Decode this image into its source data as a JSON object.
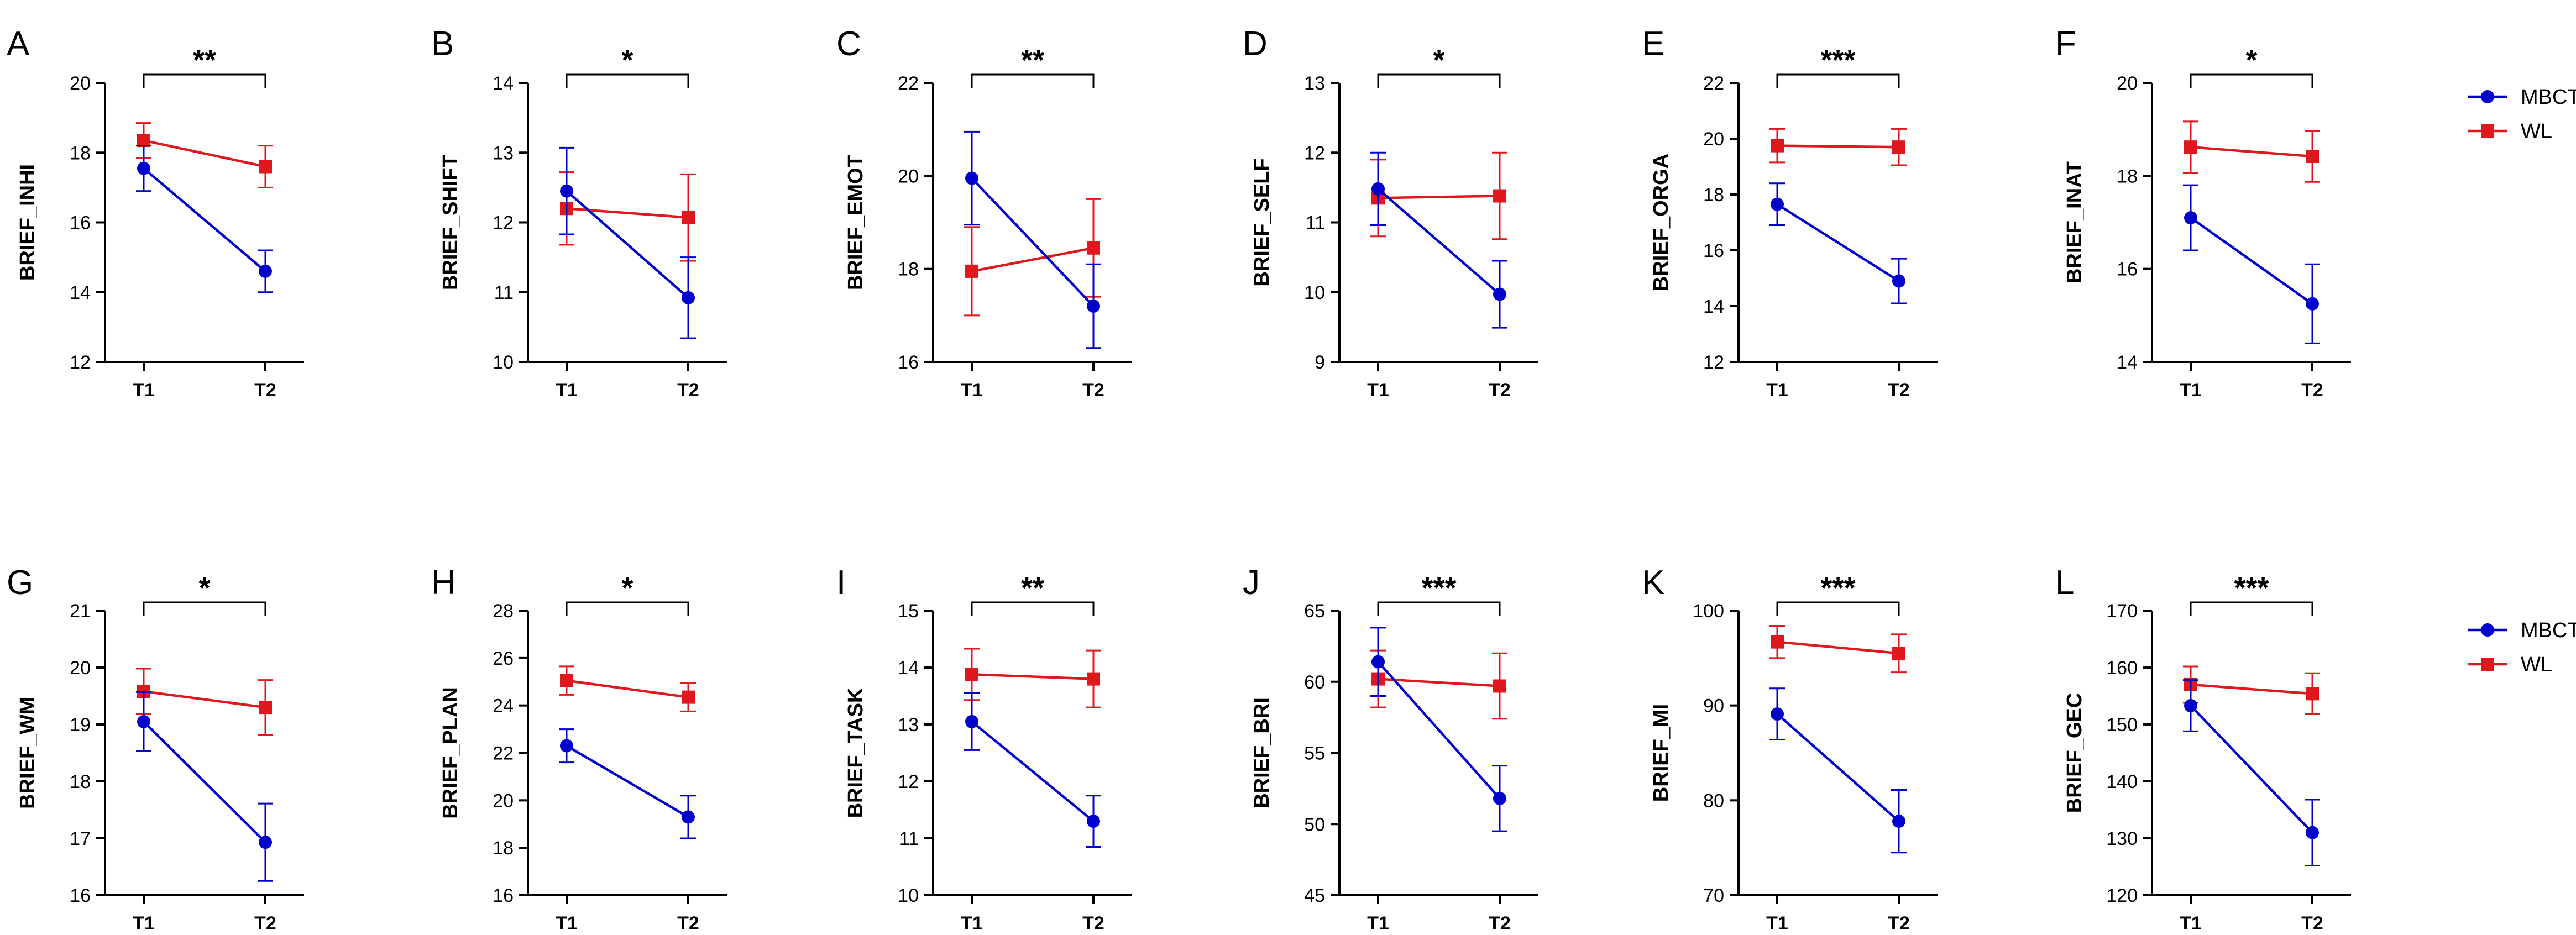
{
  "legend": {
    "series": [
      {
        "name": "MBCT",
        "color": "#0000CC",
        "marker": "circle"
      },
      {
        "name": "WL",
        "color": "#E0181E",
        "marker": "square"
      }
    ]
  },
  "chart_data": [
    {
      "type": "line",
      "panel": "A",
      "ylabel": "BRIEF_INHI",
      "categories": [
        "T1",
        "T2"
      ],
      "yticks": [
        12,
        14,
        16,
        18,
        20
      ],
      "ylim": [
        12,
        20
      ],
      "sig": "**",
      "series": [
        {
          "name": "MBCT",
          "values": [
            17.55,
            14.6
          ],
          "errors": [
            0.65,
            0.6
          ]
        },
        {
          "name": "WL",
          "values": [
            18.35,
            17.6
          ],
          "errors": [
            0.5,
            0.6
          ]
        }
      ]
    },
    {
      "type": "line",
      "panel": "B",
      "ylabel": "BRIEF_SHIFT",
      "categories": [
        "T1",
        "T2"
      ],
      "yticks": [
        10,
        11,
        12,
        13,
        14
      ],
      "ylim": [
        10,
        14
      ],
      "sig": "*",
      "series": [
        {
          "name": "MBCT",
          "values": [
            12.45,
            10.92
          ],
          "errors": [
            0.62,
            0.58
          ]
        },
        {
          "name": "WL",
          "values": [
            12.2,
            12.07
          ],
          "errors": [
            0.52,
            0.62
          ]
        }
      ]
    },
    {
      "type": "line",
      "panel": "C",
      "ylabel": "BRIEF_EMOT",
      "categories": [
        "T1",
        "T2"
      ],
      "yticks": [
        16,
        18,
        20,
        22
      ],
      "ylim": [
        16,
        22
      ],
      "sig": "**",
      "series": [
        {
          "name": "MBCT",
          "values": [
            19.95,
            17.2
          ],
          "errors": [
            1.0,
            0.9
          ]
        },
        {
          "name": "WL",
          "values": [
            17.95,
            18.45
          ],
          "errors": [
            0.95,
            1.05
          ]
        }
      ]
    },
    {
      "type": "line",
      "panel": "D",
      "ylabel": "BRIEF_SELF",
      "categories": [
        "T1",
        "T2"
      ],
      "yticks": [
        9,
        10,
        11,
        12,
        13
      ],
      "ylim": [
        9,
        13
      ],
      "sig": "*",
      "series": [
        {
          "name": "MBCT",
          "values": [
            11.48,
            9.97
          ],
          "errors": [
            0.52,
            0.48
          ]
        },
        {
          "name": "WL",
          "values": [
            11.35,
            11.38
          ],
          "errors": [
            0.55,
            0.62
          ]
        }
      ]
    },
    {
      "type": "line",
      "panel": "E",
      "ylabel": "BRIEF_ORGA",
      "categories": [
        "T1",
        "T2"
      ],
      "yticks": [
        12,
        14,
        16,
        18,
        20,
        22
      ],
      "ylim": [
        12,
        22
      ],
      "sig": "***",
      "series": [
        {
          "name": "MBCT",
          "values": [
            17.65,
            14.9
          ],
          "errors": [
            0.75,
            0.8
          ]
        },
        {
          "name": "WL",
          "values": [
            19.75,
            19.7
          ],
          "errors": [
            0.6,
            0.65
          ]
        }
      ]
    },
    {
      "type": "line",
      "panel": "F",
      "ylabel": "BRIEF_INAT",
      "categories": [
        "T1",
        "T2"
      ],
      "yticks": [
        14,
        16,
        18,
        20
      ],
      "ylim": [
        14,
        20
      ],
      "sig": "*",
      "series": [
        {
          "name": "MBCT",
          "values": [
            17.1,
            15.25
          ],
          "errors": [
            0.7,
            0.85
          ]
        },
        {
          "name": "WL",
          "values": [
            18.62,
            18.42
          ],
          "errors": [
            0.55,
            0.55
          ]
        }
      ]
    },
    {
      "type": "line",
      "panel": "G",
      "ylabel": "BRIEF_WM",
      "categories": [
        "T1",
        "T2"
      ],
      "yticks": [
        16,
        17,
        18,
        19,
        20,
        21
      ],
      "ylim": [
        16,
        21
      ],
      "sig": "*",
      "series": [
        {
          "name": "MBCT",
          "values": [
            19.05,
            16.93
          ],
          "errors": [
            0.52,
            0.68
          ]
        },
        {
          "name": "WL",
          "values": [
            19.58,
            19.3
          ],
          "errors": [
            0.4,
            0.48
          ]
        }
      ]
    },
    {
      "type": "line",
      "panel": "H",
      "ylabel": "BRIEF_PLAN",
      "categories": [
        "T1",
        "T2"
      ],
      "yticks": [
        16,
        18,
        20,
        22,
        24,
        26,
        28
      ],
      "ylim": [
        16,
        28
      ],
      "sig": "*",
      "series": [
        {
          "name": "MBCT",
          "values": [
            22.3,
            19.3
          ],
          "errors": [
            0.7,
            0.9
          ]
        },
        {
          "name": "WL",
          "values": [
            25.05,
            24.35
          ],
          "errors": [
            0.6,
            0.6
          ]
        }
      ]
    },
    {
      "type": "line",
      "panel": "I",
      "ylabel": "BRIEF_TASK",
      "categories": [
        "T1",
        "T2"
      ],
      "yticks": [
        10,
        11,
        12,
        13,
        14,
        15
      ],
      "ylim": [
        10,
        15
      ],
      "sig": "**",
      "series": [
        {
          "name": "MBCT",
          "values": [
            13.05,
            11.3
          ],
          "errors": [
            0.5,
            0.45
          ]
        },
        {
          "name": "WL",
          "values": [
            13.88,
            13.8
          ],
          "errors": [
            0.45,
            0.5
          ]
        }
      ]
    },
    {
      "type": "line",
      "panel": "J",
      "ylabel": "BRIEF_BRI",
      "categories": [
        "T1",
        "T2"
      ],
      "yticks": [
        45,
        50,
        55,
        60,
        65
      ],
      "ylim": [
        45,
        65
      ],
      "sig": "***",
      "series": [
        {
          "name": "MBCT",
          "values": [
            61.4,
            51.8
          ],
          "errors": [
            2.4,
            2.3
          ]
        },
        {
          "name": "WL",
          "values": [
            60.2,
            59.7
          ],
          "errors": [
            2.0,
            2.3
          ]
        }
      ]
    },
    {
      "type": "line",
      "panel": "K",
      "ylabel": "BRIEF_MI",
      "categories": [
        "T1",
        "T2"
      ],
      "yticks": [
        70,
        80,
        90,
        100
      ],
      "ylim": [
        70,
        100
      ],
      "sig": "***",
      "series": [
        {
          "name": "MBCT",
          "values": [
            89.1,
            77.8
          ],
          "errors": [
            2.7,
            3.3
          ]
        },
        {
          "name": "WL",
          "values": [
            96.7,
            95.5
          ],
          "errors": [
            1.7,
            2.0
          ]
        }
      ]
    },
    {
      "type": "line",
      "panel": "L",
      "ylabel": "BRIEF_GEC",
      "categories": [
        "T1",
        "T2"
      ],
      "yticks": [
        120,
        130,
        140,
        150,
        160,
        170
      ],
      "ylim": [
        120,
        170
      ],
      "sig": "***",
      "series": [
        {
          "name": "MBCT",
          "values": [
            153.3,
            131.0
          ],
          "errors": [
            4.5,
            5.8
          ]
        },
        {
          "name": "WL",
          "values": [
            157.0,
            155.4
          ],
          "errors": [
            3.2,
            3.6
          ]
        }
      ]
    }
  ]
}
